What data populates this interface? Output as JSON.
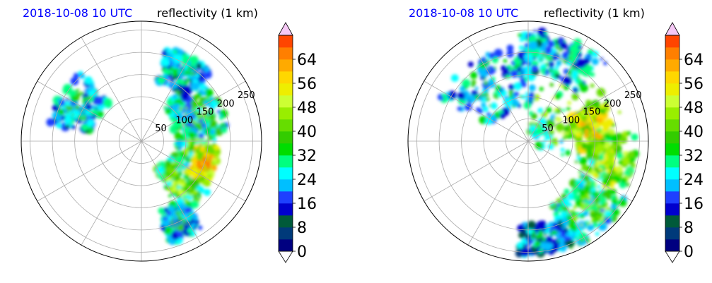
{
  "chart_data": [
    {
      "type": "polar_radar",
      "title_left": "2018-10-08 10 UTC",
      "title_right": "reflectivity (1 km)",
      "range_ring_labels": [
        "50",
        "100",
        "150",
        "200",
        "250"
      ],
      "range_rings": [
        50,
        100,
        150,
        200,
        250
      ],
      "rmax": 270,
      "radial_spokes_deg": [
        0,
        30,
        60,
        90,
        120,
        150,
        180,
        210,
        240,
        270,
        300,
        330
      ],
      "grid": true,
      "echo_blobs": [
        {
          "az": 95,
          "r": 120,
          "az_w": 60,
          "r_w": 90,
          "dbz": 30
        },
        {
          "az": 110,
          "r": 150,
          "az_w": 30,
          "r_w": 50,
          "dbz": 50
        },
        {
          "az": 140,
          "r": 130,
          "az_w": 25,
          "r_w": 120,
          "dbz": 36
        },
        {
          "az": 60,
          "r": 140,
          "az_w": 50,
          "r_w": 110,
          "dbz": 28
        },
        {
          "az": 30,
          "r": 180,
          "az_w": 30,
          "r_w": 80,
          "dbz": 20
        },
        {
          "az": 300,
          "r": 160,
          "az_w": 40,
          "r_w": 100,
          "dbz": 22
        },
        {
          "az": 155,
          "r": 200,
          "az_w": 20,
          "r_w": 80,
          "dbz": 24
        }
      ],
      "colorbar": {
        "label": "reflectivity",
        "min": 0,
        "max": 72,
        "step": 4,
        "ticks": [
          "0",
          "8",
          "16",
          "24",
          "32",
          "40",
          "48",
          "56",
          "64"
        ],
        "extend": "both"
      }
    },
    {
      "type": "polar_radar",
      "title_left": "2018-10-08 10 UTC",
      "title_right": "reflectivity (1 km)",
      "range_ring_labels": [
        "50",
        "100",
        "150",
        "200",
        "250"
      ],
      "range_rings": [
        50,
        100,
        150,
        200,
        250
      ],
      "rmax": 270,
      "radial_spokes_deg": [
        0,
        30,
        60,
        90,
        120,
        150,
        180,
        210,
        240,
        270,
        300,
        330
      ],
      "grid": true,
      "echo_blobs": [
        {
          "az": 60,
          "r": 120,
          "az_w": 120,
          "r_w": 200,
          "dbz": 34
        },
        {
          "az": 80,
          "r": 150,
          "az_w": 40,
          "r_w": 90,
          "dbz": 48
        },
        {
          "az": 110,
          "r": 190,
          "az_w": 50,
          "r_w": 110,
          "dbz": 40
        },
        {
          "az": 140,
          "r": 200,
          "az_w": 40,
          "r_w": 120,
          "dbz": 30
        },
        {
          "az": 330,
          "r": 150,
          "az_w": 70,
          "r_w": 140,
          "dbz": 24
        },
        {
          "az": 20,
          "r": 200,
          "az_w": 50,
          "r_w": 100,
          "dbz": 22
        },
        {
          "az": 170,
          "r": 220,
          "az_w": 30,
          "r_w": 70,
          "dbz": 18
        }
      ],
      "colorbar": {
        "label": "reflectivity",
        "min": 0,
        "max": 72,
        "step": 4,
        "ticks": [
          "0",
          "8",
          "16",
          "24",
          "32",
          "40",
          "48",
          "56",
          "64"
        ],
        "extend": "both"
      }
    }
  ],
  "colormap": [
    "#000080",
    "#003a7a",
    "#005a3a",
    "#0000cd",
    "#1e40ff",
    "#00bfff",
    "#00ffff",
    "#00ff80",
    "#00dd00",
    "#33cc00",
    "#66dd00",
    "#99ee00",
    "#ccff33",
    "#eeee00",
    "#ffd700",
    "#ffaa00",
    "#ff7f00",
    "#ff4500",
    "#ff0000",
    "#d40000",
    "#c000c0",
    "#e040e0",
    "#f08cf0",
    "#f5c8f5"
  ]
}
